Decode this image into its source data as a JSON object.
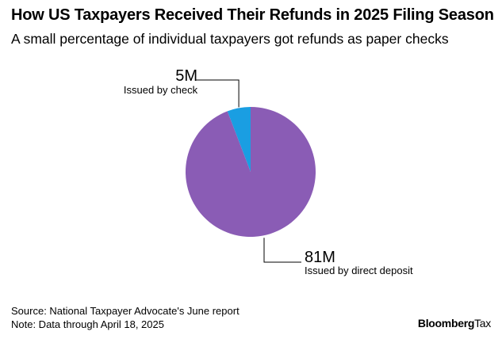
{
  "chart_data": {
    "type": "pie",
    "title": "How US Taxpayers Received Their Refunds in 2025 Filing Season",
    "subtitle": "A small percentage of individual taxpayers got refunds as paper checks",
    "slices": [
      {
        "label": "Issued by check",
        "value": 5,
        "value_label": "5M",
        "color": "#1a9ee2"
      },
      {
        "label": "Issued by direct deposit",
        "value": 81,
        "value_label": "81M",
        "color": "#8a5cb5"
      }
    ],
    "start": "12 o'clock",
    "direction": "counter-clockwise"
  },
  "footer": {
    "source": "Source: National Taxpayer Advocate's June report",
    "note": "Note: Data through April 18, 2025"
  },
  "brand": {
    "name": "Bloomberg",
    "suffix": "Tax"
  }
}
